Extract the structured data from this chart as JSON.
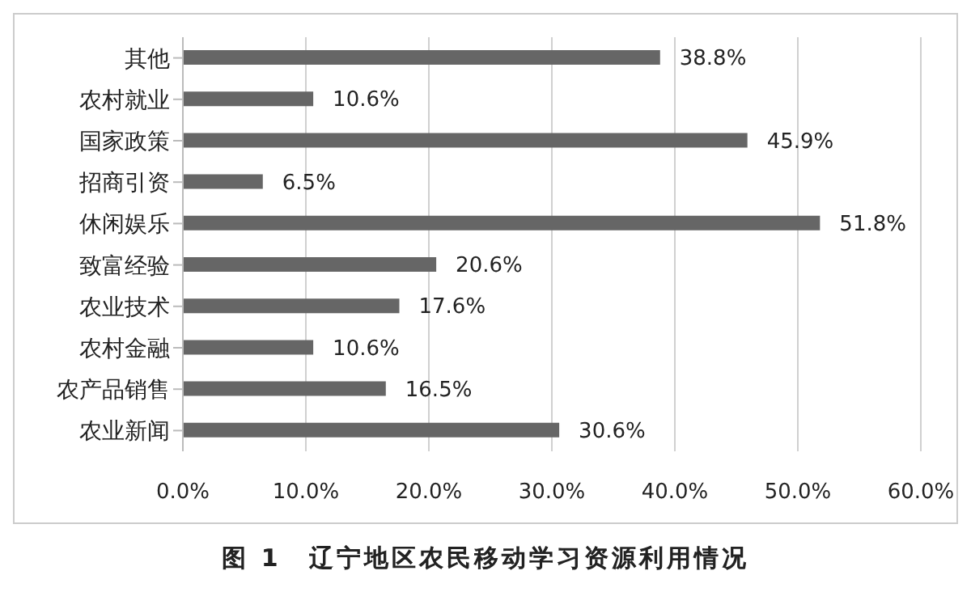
{
  "chart_data": {
    "type": "bar",
    "orientation": "horizontal",
    "title": "图 1　辽宁地区农民移动学习资源利用情况",
    "categories": [
      "其他",
      "农村就业",
      "国家政策",
      "招商引资",
      "休闲娱乐",
      "致富经验",
      "农业技术",
      "农村金融",
      "农产品销售",
      "农业新闻"
    ],
    "values": [
      38.8,
      10.6,
      45.9,
      6.5,
      51.8,
      20.6,
      17.6,
      10.6,
      16.5,
      30.6
    ],
    "value_labels": [
      "38.8%",
      "10.6%",
      "45.9%",
      "6.5%",
      "51.8%",
      "20.6%",
      "17.6%",
      "10.6%",
      "16.5%",
      "30.6%"
    ],
    "color": "#666666",
    "xlim": [
      0,
      60
    ],
    "xticks": [
      {
        "value": 0,
        "label": "0.0%"
      },
      {
        "value": 10,
        "label": "10.0%"
      },
      {
        "value": 20,
        "label": "20.0%"
      },
      {
        "value": 30,
        "label": "30.0%"
      },
      {
        "value": 40,
        "label": "40.0%"
      },
      {
        "value": 50,
        "label": "50.0%"
      },
      {
        "value": 60,
        "label": "60.0%"
      }
    ],
    "grid": "x"
  }
}
